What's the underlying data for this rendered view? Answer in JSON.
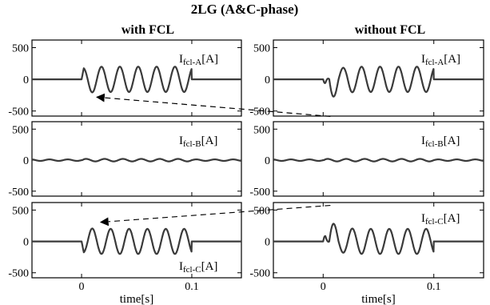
{
  "title": "2LG (A&C-phase)",
  "columns": [
    {
      "title": "with FCL"
    },
    {
      "title": "without FCL"
    }
  ],
  "chart_data": {
    "type": "line",
    "x_axis": {
      "label": "time[s]",
      "ticks": [
        0,
        0.1
      ],
      "tick_labels": [
        "0",
        "0.1"
      ],
      "range": [
        -0.045,
        0.145
      ]
    },
    "y_axis": {
      "ticks": [
        -500,
        0,
        500
      ],
      "tick_labels": [
        "-500",
        "0",
        "500"
      ],
      "range": [
        -580,
        620
      ]
    },
    "panels": [
      {
        "column": 0,
        "row": 0,
        "label_main": "I",
        "label_sub": "fcl-A",
        "label_unit": "[A]",
        "fault": {
          "first_peak": -230,
          "amplitude": 200,
          "sign": 1
        }
      },
      {
        "column": 0,
        "row": 1,
        "label_main": "I",
        "label_sub": "fcl-B",
        "label_unit": "[A]",
        "fault": {
          "first_peak": 0,
          "amplitude": 20,
          "sign": 1
        }
      },
      {
        "column": 0,
        "row": 2,
        "label_main": "I",
        "label_sub": "fcl-C",
        "label_unit": "[A]",
        "fault": {
          "first_peak": 230,
          "amplitude": 200,
          "sign": -1
        }
      },
      {
        "column": 1,
        "row": 0,
        "label_main": "I",
        "label_sub": "fcl-A",
        "label_unit": "[A]",
        "fault": {
          "first_peak": -560,
          "amplitude": 200,
          "sign": 1
        }
      },
      {
        "column": 1,
        "row": 1,
        "label_main": "I",
        "label_sub": "fcl-B",
        "label_unit": "[A]",
        "fault": {
          "first_peak": 0,
          "amplitude": 20,
          "sign": 1
        }
      },
      {
        "column": 1,
        "row": 2,
        "label_main": "I",
        "label_sub": "fcl-C",
        "label_unit": "[A]",
        "fault": {
          "first_peak": 600,
          "amplitude": 200,
          "sign": -1
        }
      }
    ],
    "fault_interval": [
      0,
      0.1
    ],
    "frequency_hz": 60
  }
}
